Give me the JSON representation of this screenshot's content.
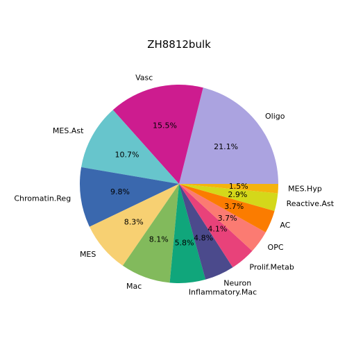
{
  "chart_data": {
    "type": "pie",
    "title": "ZH8812bulk",
    "start_angle_deg": 0,
    "direction": "counterclockwise",
    "slices": [
      {
        "label": "Oligo",
        "value": 21.1,
        "pct_label": "21.1%",
        "color": "#ABA3E0"
      },
      {
        "label": "Vasc",
        "value": 15.5,
        "pct_label": "15.5%",
        "color": "#CD1C8F"
      },
      {
        "label": "MES.Ast",
        "value": 10.7,
        "pct_label": "10.7%",
        "color": "#67C5CC"
      },
      {
        "label": "Chromatin.Reg",
        "value": 9.8,
        "pct_label": "9.8%",
        "color": "#3A68AE"
      },
      {
        "label": "MES",
        "value": 8.3,
        "pct_label": "8.3%",
        "color": "#F7D072"
      },
      {
        "label": "Mac",
        "value": 8.1,
        "pct_label": "8.1%",
        "color": "#82BA5C"
      },
      {
        "label": "Inflammatory.Mac",
        "value": 5.8,
        "pct_label": "5.8%",
        "color": "#10A67B"
      },
      {
        "label": "Neuron",
        "value": 4.8,
        "pct_label": "4.8%",
        "color": "#4B4A8C"
      },
      {
        "label": "Prolif.Metab",
        "value": 4.1,
        "pct_label": "4.1%",
        "color": "#E8427A"
      },
      {
        "label": "OPC",
        "value": 3.7,
        "pct_label": "3.7%",
        "color": "#FB7B72"
      },
      {
        "label": "AC",
        "value": 3.7,
        "pct_label": "3.7%",
        "color": "#FB7C00"
      },
      {
        "label": "Reactive.Ast",
        "value": 2.9,
        "pct_label": "2.9%",
        "color": "#D4D81A"
      },
      {
        "label": "MES.Hyp",
        "value": 1.5,
        "pct_label": "1.5%",
        "color": "#F4B30E"
      }
    ]
  }
}
